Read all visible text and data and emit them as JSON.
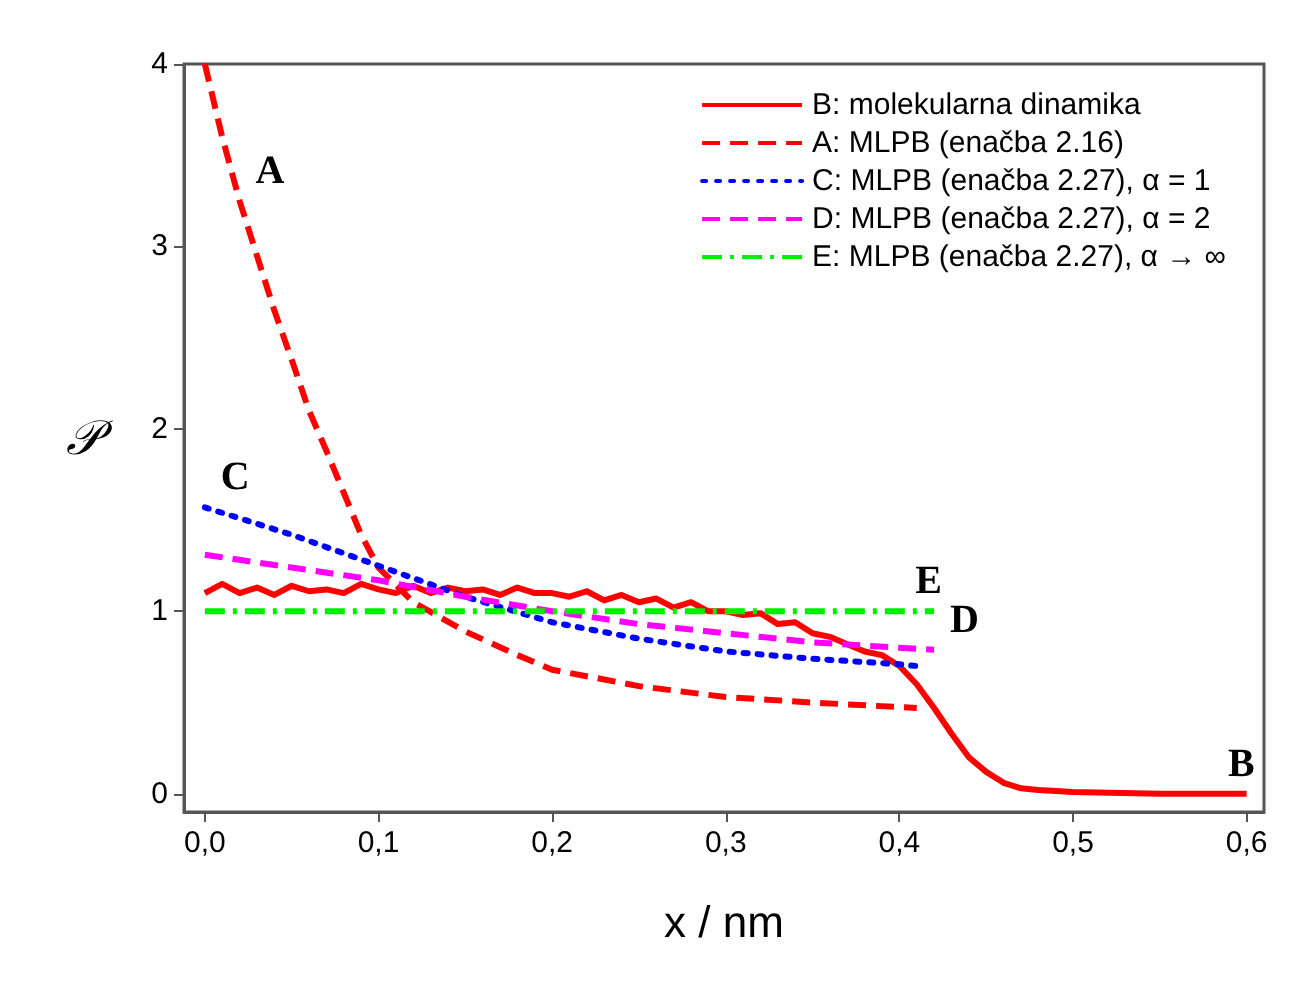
{
  "chart_data": {
    "type": "line",
    "xlabel": "x / nm",
    "ylabel": "𝒫",
    "xlim": [
      -0.012,
      0.61
    ],
    "ylim": [
      -0.1,
      4
    ],
    "xticks": [
      {
        "value": 0,
        "label": "0,0"
      },
      {
        "value": 0.1,
        "label": "0,1"
      },
      {
        "value": 0.2,
        "label": "0,2"
      },
      {
        "value": 0.3,
        "label": "0,3"
      },
      {
        "value": 0.4,
        "label": "0,4"
      },
      {
        "value": 0.5,
        "label": "0,5"
      },
      {
        "value": 0.6,
        "label": "0,6"
      }
    ],
    "yticks": [
      0,
      1,
      2,
      3,
      4
    ],
    "grid": false,
    "legend": "top right",
    "marker": "none",
    "series": [
      {
        "name": "B: molekularna dinamika",
        "color": "#ff0000",
        "line_style": "solid",
        "x": [
          0,
          0.01,
          0.02,
          0.03,
          0.04,
          0.05,
          0.06,
          0.07,
          0.08,
          0.09,
          0.1,
          0.11,
          0.12,
          0.13,
          0.14,
          0.15,
          0.16,
          0.17,
          0.18,
          0.19,
          0.2,
          0.21,
          0.22,
          0.23,
          0.24,
          0.25,
          0.26,
          0.27,
          0.28,
          0.29,
          0.3,
          0.31,
          0.32,
          0.33,
          0.34,
          0.35,
          0.36,
          0.37,
          0.38,
          0.39,
          0.4,
          0.41,
          0.42,
          0.43,
          0.44,
          0.45,
          0.46,
          0.47,
          0.48,
          0.5,
          0.55,
          0.6
        ],
        "values": [
          1.1,
          1.15,
          1.1,
          1.13,
          1.09,
          1.14,
          1.11,
          1.12,
          1.1,
          1.15,
          1.12,
          1.1,
          1.14,
          1.1,
          1.13,
          1.11,
          1.12,
          1.09,
          1.13,
          1.1,
          1.1,
          1.08,
          1.11,
          1.06,
          1.09,
          1.05,
          1.07,
          1.02,
          1.05,
          1.0,
          1.0,
          0.98,
          0.99,
          0.93,
          0.94,
          0.88,
          0.86,
          0.82,
          0.78,
          0.76,
          0.7,
          0.6,
          0.47,
          0.33,
          0.2,
          0.12,
          0.06,
          0.03,
          0.02,
          0.01,
          0.0,
          0.0
        ]
      },
      {
        "name": "A: MLPB (enačba 2.16)",
        "color": "#ff0000",
        "line_style": "dashed",
        "x": [
          0,
          0.01,
          0.02,
          0.03,
          0.04,
          0.05,
          0.06,
          0.07,
          0.08,
          0.09,
          0.1,
          0.12,
          0.15,
          0.18,
          0.2,
          0.25,
          0.3,
          0.35,
          0.41
        ],
        "values": [
          4.0,
          3.6,
          3.25,
          2.95,
          2.65,
          2.38,
          2.1,
          1.88,
          1.65,
          1.42,
          1.24,
          1.05,
          0.89,
          0.76,
          0.68,
          0.59,
          0.53,
          0.5,
          0.47
        ]
      },
      {
        "name": "C: MLPB (enačba 2.27), α = 1",
        "color": "#0000ff",
        "line_style": "dotted",
        "x": [
          0,
          0.05,
          0.1,
          0.15,
          0.2,
          0.25,
          0.3,
          0.35,
          0.4,
          0.41
        ],
        "values": [
          1.57,
          1.42,
          1.25,
          1.08,
          0.94,
          0.85,
          0.78,
          0.74,
          0.71,
          0.7
        ]
      },
      {
        "name": "D: MLPB (enačba 2.27), α = 2",
        "color": "#ff00ff",
        "line_style": "dashed",
        "x": [
          0,
          0.05,
          0.1,
          0.15,
          0.2,
          0.25,
          0.3,
          0.35,
          0.4,
          0.42
        ],
        "values": [
          1.31,
          1.24,
          1.17,
          1.08,
          1.0,
          0.93,
          0.88,
          0.83,
          0.8,
          0.79
        ]
      },
      {
        "name": "E: MLPB (enačba 2.27), α → ∞",
        "color": "#00ee00",
        "line_style": "dashed",
        "x": [
          0,
          0.42
        ],
        "values": [
          1.0,
          1.0
        ]
      }
    ],
    "annotations": [
      {
        "text": "A",
        "x": 0.02,
        "y": 3.25
      },
      {
        "text": "C",
        "x": 0,
        "y": 1.57
      },
      {
        "text": "E",
        "x": 0.4,
        "y": 1.0
      },
      {
        "text": "D",
        "x": 0.42,
        "y": 0.79
      },
      {
        "text": "B",
        "x": 0.58,
        "y": 0.0
      }
    ]
  }
}
